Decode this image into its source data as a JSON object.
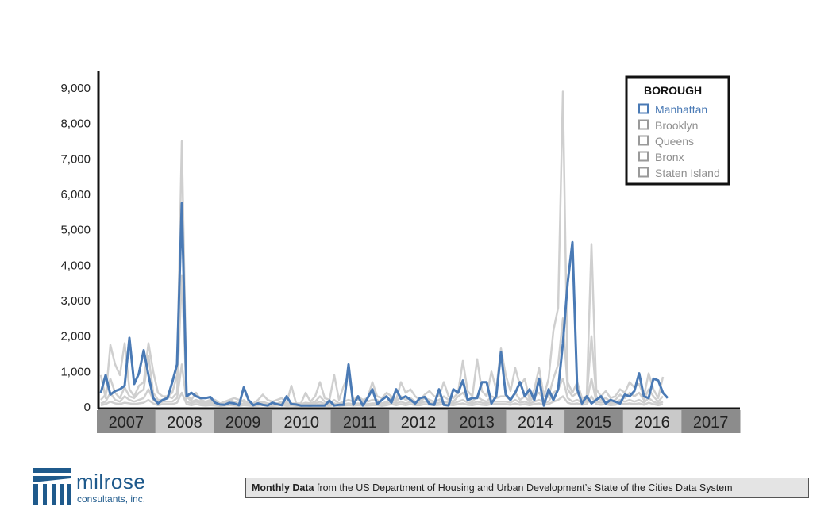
{
  "chart_data": {
    "type": "line",
    "title": "",
    "xlabel": "",
    "ylabel": "",
    "ylim": [
      0,
      9000
    ],
    "y_ticks": [
      "0",
      "1,000",
      "2,000",
      "3,000",
      "4,000",
      "5,000",
      "6,000",
      "7,000",
      "8,000",
      "9,000"
    ],
    "y_tick_values": [
      0,
      1000,
      2000,
      3000,
      4000,
      5000,
      6000,
      7000,
      8000,
      9000
    ],
    "year_labels": [
      "2007",
      "2008",
      "2009",
      "2010",
      "2011",
      "2012",
      "2013",
      "2014",
      "2015",
      "2016",
      "2017"
    ],
    "x_unit": "month index from January 2007",
    "grid": false,
    "legend": {
      "title": "BOROUGH",
      "placement": "top-right",
      "items": [
        "Manhattan",
        "Brooklyn",
        "Queens",
        "Bronx",
        "Staten Island"
      ]
    },
    "highlight_color": "#4a7ab5",
    "other_color": "#cfcfcf",
    "series": [
      {
        "name": "Manhattan",
        "values": [
          400,
          900,
          350,
          450,
          500,
          600,
          1950,
          650,
          950,
          1600,
          900,
          250,
          100,
          200,
          250,
          700,
          1200,
          5750,
          300,
          400,
          300,
          250,
          250,
          280,
          120,
          70,
          60,
          120,
          100,
          50,
          550,
          200,
          50,
          100,
          60,
          40,
          120,
          80,
          50,
          300,
          80,
          70,
          40,
          40,
          40,
          40,
          40,
          40,
          180,
          40,
          60,
          60,
          1200,
          60,
          300,
          40,
          250,
          500,
          80,
          200,
          300,
          120,
          500,
          230,
          300,
          200,
          100,
          250,
          280,
          80,
          60,
          500,
          60,
          40,
          500,
          400,
          750,
          200,
          250,
          250,
          700,
          700,
          100,
          300,
          1550,
          350,
          200,
          400,
          700,
          300,
          500,
          200,
          800,
          40,
          500,
          200,
          500,
          1800,
          3500,
          4650,
          500,
          100,
          300,
          100,
          200,
          300,
          100,
          200,
          150,
          100,
          350,
          300,
          450,
          950,
          300,
          250,
          800,
          750,
          400,
          250
        ]
      },
      {
        "name": "Brooklyn",
        "values": [
          900,
          250,
          1750,
          1200,
          900,
          1800,
          500,
          300,
          600,
          700,
          1800,
          1000,
          400,
          300,
          300,
          400,
          900,
          7500,
          350,
          200,
          400,
          200,
          150,
          200,
          200,
          100,
          150,
          200,
          250,
          200,
          150,
          150,
          100,
          200,
          350,
          200,
          150,
          200,
          250,
          100,
          600,
          100,
          100,
          400,
          150,
          300,
          700,
          250,
          200,
          900,
          200,
          600,
          900,
          200,
          300,
          200,
          250,
          700,
          300,
          250,
          400,
          300,
          200,
          700,
          400,
          500,
          300,
          200,
          350,
          450,
          300,
          300,
          700,
          300,
          250,
          400,
          1300,
          450,
          300,
          1350,
          450,
          300,
          1000,
          500,
          1650,
          900,
          450,
          1100,
          600,
          800,
          200,
          500,
          1100,
          300,
          800,
          2150,
          2800,
          8900,
          700,
          400,
          700,
          250,
          300,
          4600,
          500,
          300,
          450,
          250,
          300,
          500,
          400,
          700,
          550,
          650,
          300,
          950,
          500,
          250,
          850
        ]
      },
      {
        "name": "Queens",
        "values": [
          200,
          350,
          800,
          400,
          250,
          550,
          300,
          250,
          400,
          500,
          1450,
          400,
          200,
          200,
          300,
          250,
          400,
          3700,
          300,
          150,
          200,
          150,
          100,
          150,
          100,
          80,
          100,
          200,
          150,
          100,
          200,
          100,
          80,
          120,
          150,
          100,
          80,
          100,
          150,
          100,
          100,
          100,
          80,
          120,
          100,
          150,
          300,
          150,
          100,
          200,
          100,
          150,
          200,
          150,
          200,
          150,
          150,
          200,
          200,
          100,
          150,
          250,
          150,
          300,
          200,
          250,
          150,
          150,
          250,
          200,
          150,
          200,
          300,
          200,
          150,
          300,
          400,
          200,
          150,
          300,
          200,
          150,
          300,
          250,
          300,
          300,
          200,
          400,
          200,
          300,
          150,
          300,
          400,
          200,
          300,
          800,
          1200,
          2500,
          500,
          300,
          400,
          200,
          250,
          2000,
          300,
          200,
          250,
          150,
          200,
          350,
          250,
          400,
          300,
          400,
          200,
          500,
          300,
          150,
          300
        ]
      },
      {
        "name": "Bronx",
        "values": [
          100,
          150,
          400,
          200,
          150,
          300,
          200,
          150,
          200,
          250,
          500,
          200,
          100,
          150,
          150,
          150,
          250,
          1200,
          150,
          100,
          150,
          100,
          80,
          100,
          80,
          60,
          80,
          100,
          80,
          60,
          100,
          80,
          60,
          80,
          100,
          60,
          60,
          80,
          100,
          60,
          80,
          60,
          60,
          80,
          60,
          100,
          150,
          80,
          60,
          100,
          60,
          80,
          100,
          80,
          100,
          80,
          80,
          100,
          100,
          60,
          100,
          150,
          100,
          150,
          100,
          150,
          100,
          100,
          150,
          120,
          100,
          120,
          150,
          120,
          100,
          150,
          200,
          120,
          100,
          150,
          120,
          100,
          150,
          150,
          150,
          150,
          120,
          200,
          120,
          150,
          100,
          150,
          200,
          120,
          150,
          400,
          500,
          800,
          250,
          150,
          200,
          120,
          150,
          800,
          150,
          120,
          150,
          100,
          120,
          200,
          150,
          200,
          150,
          200,
          120,
          250,
          150,
          100,
          150
        ]
      },
      {
        "name": "Staten Island",
        "values": [
          50,
          80,
          150,
          100,
          80,
          120,
          100,
          80,
          100,
          120,
          200,
          100,
          50,
          80,
          80,
          80,
          120,
          400,
          80,
          50,
          80,
          50,
          40,
          50,
          40,
          30,
          40,
          50,
          40,
          30,
          50,
          40,
          30,
          40,
          50,
          30,
          30,
          40,
          50,
          30,
          40,
          30,
          30,
          40,
          30,
          50,
          80,
          40,
          30,
          50,
          30,
          40,
          50,
          40,
          50,
          40,
          40,
          50,
          50,
          30,
          50,
          80,
          50,
          80,
          50,
          80,
          50,
          50,
          80,
          60,
          50,
          60,
          80,
          60,
          50,
          80,
          100,
          60,
          50,
          80,
          60,
          50,
          80,
          80,
          80,
          80,
          60,
          100,
          60,
          80,
          50,
          80,
          100,
          60,
          80,
          150,
          200,
          300,
          120,
          80,
          100,
          60,
          80,
          300,
          80,
          60,
          80,
          50,
          60,
          100,
          80,
          100,
          80,
          100,
          60,
          120,
          80,
          50,
          80
        ]
      }
    ]
  },
  "footer": {
    "logo_name": "milrose",
    "logo_sub": "consultants, inc.",
    "source_bold": "Monthly Data",
    "source_rest": " from the US Department of Housing and Urban Development’s State of the Cities Data System"
  }
}
